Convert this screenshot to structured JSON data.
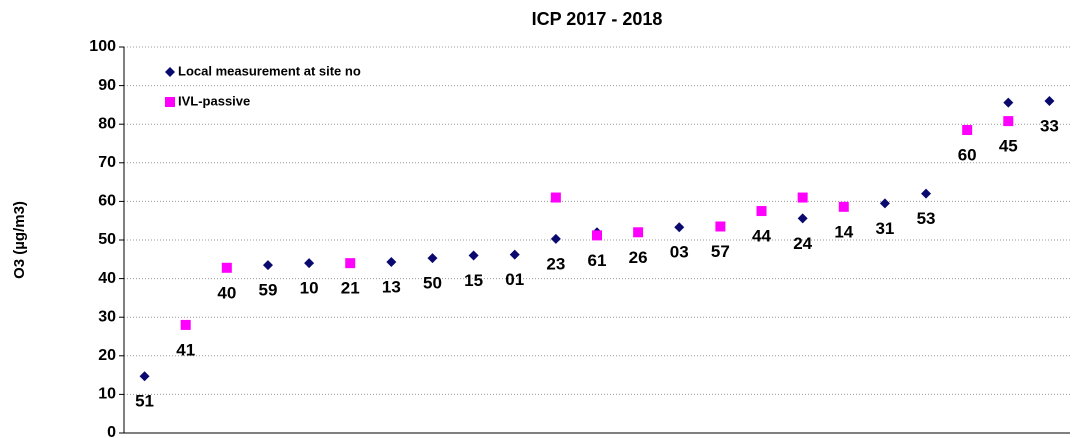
{
  "chart_data": {
    "type": "scatter",
    "title": "ICP 2017 - 2018",
    "y_label": "O3 (µg/m3)",
    "categories": [
      "51",
      "41",
      "40",
      "59",
      "10",
      "21",
      "13",
      "50",
      "15",
      "01",
      "23",
      "61",
      "26",
      "03",
      "57",
      "44",
      "24",
      "14",
      "31",
      "53",
      "60",
      "45",
      "33"
    ],
    "series": [
      {
        "name": "Local measurement at site no",
        "color": "#0a0a6e",
        "marker": "diamond",
        "values": [
          14.7,
          null,
          null,
          43.5,
          44,
          null,
          44.3,
          45.3,
          46,
          46.2,
          50.3,
          52,
          null,
          53.3,
          null,
          null,
          55.6,
          null,
          59.5,
          62,
          null,
          85.6,
          86
        ]
      },
      {
        "name": "IVL-passive",
        "color": "#ff00ff",
        "marker": "square",
        "values": [
          null,
          28,
          42.8,
          null,
          null,
          44,
          null,
          null,
          null,
          null,
          61,
          51.2,
          52,
          null,
          53.5,
          57.5,
          61,
          58.6,
          null,
          null,
          78.5,
          80.8,
          null
        ]
      }
    ],
    "ylim": [
      0,
      100
    ],
    "yticks": [
      0,
      10,
      20,
      30,
      40,
      50,
      60,
      70,
      80,
      90,
      100
    ],
    "grid": true,
    "legend": "top-left"
  }
}
